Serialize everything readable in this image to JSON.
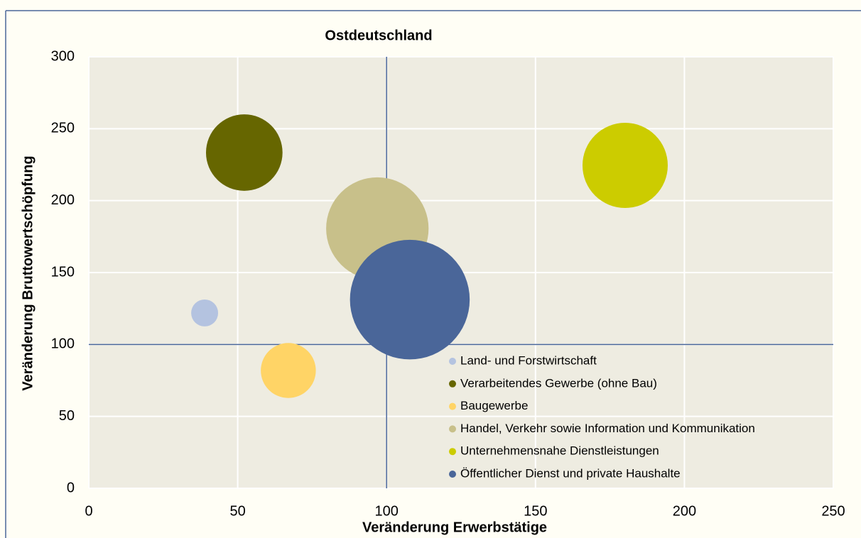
{
  "chart_data": {
    "type": "bubble",
    "title": "Ostdeutschland",
    "x_label": "Veränderung Erwerbstätige",
    "y_label": "Veränderung Bruttowertschöpfung",
    "xlim": [
      0,
      250
    ],
    "xticks": [
      0,
      50,
      100,
      150,
      200,
      250
    ],
    "ylim": [
      0,
      300
    ],
    "yticks": [
      0,
      50,
      100,
      150,
      200,
      250,
      300
    ],
    "grid": true,
    "reference_lines": {
      "x": 100,
      "y": 100,
      "color": "#4a6699"
    },
    "legend": "lower right",
    "series": [
      {
        "name": "Land- und Forstwirtschaft",
        "color": "#b4c3e0",
        "x": [
          38.9
        ],
        "values": [
          121.9
        ],
        "sizes": [
          3.6
        ]
      },
      {
        "name": "Verarbeitendes Gewerbe (ohne Bau)",
        "color": "#666600",
        "x": [
          52.2
        ],
        "values": [
          233.4
        ],
        "sizes": [
          29
        ]
      },
      {
        "name": "Baugewerbe",
        "color": "#ffd466",
        "x": [
          67.0
        ],
        "values": [
          81.9
        ],
        "sizes": [
          15
        ]
      },
      {
        "name": "Handel, Verkehr sowie Information und Kommunikation",
        "color": "#c8c08a",
        "x": [
          96.9
        ],
        "values": [
          180.6
        ],
        "sizes": [
          52
        ]
      },
      {
        "name": "Unternehmensnahe Dienstleistungen",
        "color": "#cccc00",
        "x": [
          180.1
        ],
        "values": [
          224.5
        ],
        "sizes": [
          36
        ]
      },
      {
        "name": "Öffentlicher Dienst und private Haushalte",
        "color": "#4a6699",
        "x": [
          107.8
        ],
        "values": [
          131.2
        ],
        "sizes": [
          71
        ]
      }
    ]
  }
}
